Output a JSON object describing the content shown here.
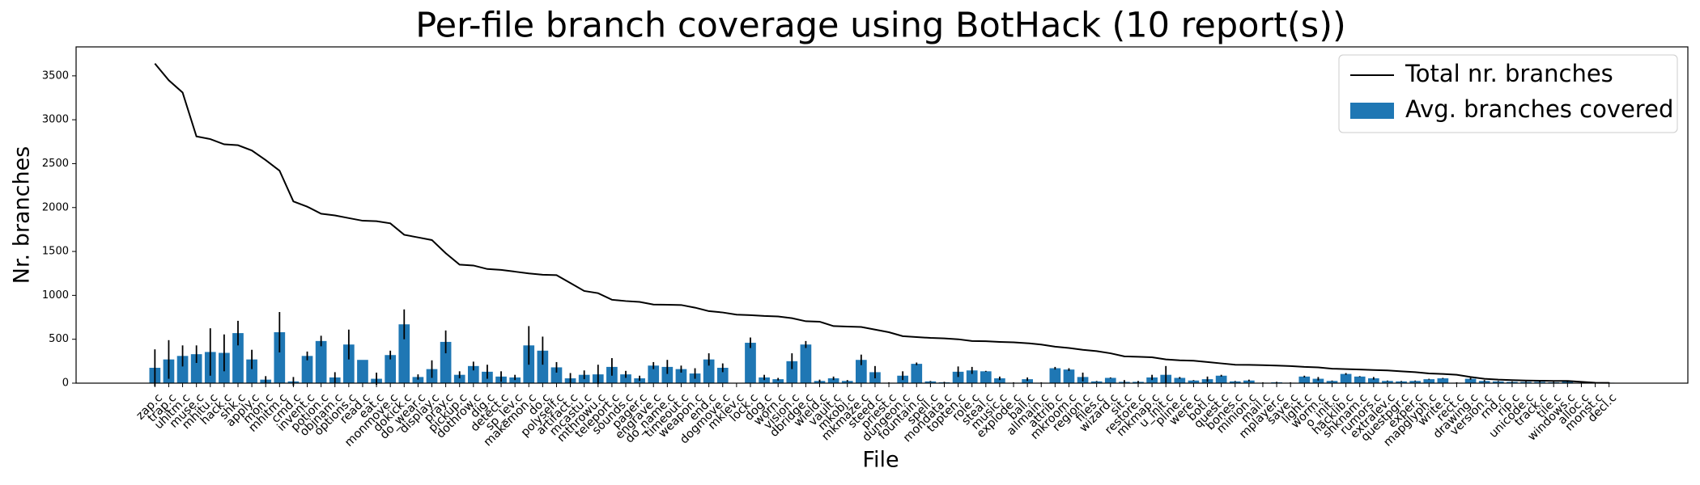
{
  "chart_data": {
    "type": "bar",
    "title": "Per-file branch coverage using BotHack (10 report(s))",
    "x_label": "File",
    "y_label": "Nr. branches",
    "categories": [
      "zap.c",
      "trap.c",
      "uhitm.c",
      "muse.c",
      "mhitu.c",
      "hack.c",
      "shk.c",
      "apply.c",
      "mon.c",
      "mhitm.c",
      "cmd.c",
      "invent.c",
      "potion.c",
      "objnam.c",
      "options.c",
      "read.c",
      "eat.c",
      "monmove.c",
      "dokick.c",
      "do_wear.c",
      "display.c",
      "pray.c",
      "pickup.c",
      "dothrow.c",
      "dig.c",
      "detect.c",
      "sp_lev.c",
      "makemon.c",
      "do.c",
      "polyself.c",
      "artifact.c",
      "mcastu.c",
      "mthrowu.c",
      "teleport.c",
      "sounds.c",
      "pager.c",
      "engrave.c",
      "do_name.c",
      "timeout.c",
      "weapon.c",
      "end.c",
      "dogmove.c",
      "mklev.c",
      "lock.c",
      "dog.c",
      "worn.c",
      "vision.c",
      "dbridge.c",
      "wield.c",
      "vault.c",
      "mkobj.c",
      "mkmaze.c",
      "steed.c",
      "priest.c",
      "dungeon.c",
      "fountain.c",
      "spell.c",
      "mondata.c",
      "topten.c",
      "role.c",
      "steal.c",
      "music.c",
      "explode.c",
      "ball.c",
      "allmain.c",
      "attrib.c",
      "mkroom.c",
      "region.c",
      "files.c",
      "wizard.c",
      "sit.c",
      "restore.c",
      "mkmap.c",
      "u_init.c",
      "pline.c",
      "were.c",
      "botl.c",
      "quest.c",
      "bones.c",
      "minion.c",
      "mail.c",
      "mplayer.c",
      "save.c",
      "light.c",
      "worm.c",
      "o_init.c",
      "hacklib.c",
      "shknam.c",
      "rumors.c",
      "extralev.c",
      "questpgr.c",
      "exper.c",
      "mapglyph.c",
      "write.c",
      "rect.c",
      "drawing.c",
      "version.c",
      "rnd.c",
      "rip.c",
      "unicode.c",
      "track.c",
      "tile.c",
      "windows.c",
      "alloc.c",
      "monst.c",
      "decl.c"
    ],
    "series": [
      {
        "name": "Total nr. branches",
        "type": "line",
        "color": "#000000",
        "values": [
          3640,
          3450,
          3310,
          2810,
          2780,
          2720,
          2710,
          2650,
          2540,
          2420,
          2070,
          2010,
          1930,
          1910,
          1880,
          1850,
          1845,
          1820,
          1690,
          1660,
          1630,
          1480,
          1350,
          1340,
          1300,
          1290,
          1270,
          1250,
          1235,
          1230,
          1140,
          1050,
          1025,
          950,
          935,
          925,
          895,
          893,
          890,
          860,
          820,
          805,
          780,
          775,
          765,
          760,
          740,
          705,
          700,
          650,
          645,
          640,
          610,
          580,
          535,
          525,
          515,
          510,
          500,
          480,
          478,
          470,
          465,
          455,
          440,
          415,
          400,
          380,
          365,
          340,
          305,
          300,
          295,
          270,
          260,
          255,
          240,
          225,
          210,
          208,
          205,
          200,
          195,
          185,
          180,
          165,
          160,
          155,
          150,
          145,
          135,
          125,
          110,
          105,
          95,
          70,
          50,
          40,
          35,
          30,
          28,
          25,
          25,
          15,
          5,
          3
        ]
      },
      {
        "name": "Avg. branches covered",
        "type": "bar",
        "color": "#1f77b4",
        "error_color": "#000000",
        "values": [
          175,
          270,
          310,
          330,
          355,
          345,
          570,
          270,
          40,
          580,
          20,
          310,
          480,
          65,
          440,
          265,
          50,
          320,
          670,
          70,
          160,
          470,
          95,
          195,
          130,
          75,
          65,
          430,
          370,
          180,
          55,
          95,
          100,
          185,
          100,
          55,
          200,
          185,
          160,
          110,
          270,
          175,
          0,
          460,
          65,
          45,
          250,
          440,
          25,
          55,
          25,
          265,
          125,
          5,
          85,
          220,
          20,
          10,
          130,
          145,
          135,
          55,
          5,
          45,
          5,
          170,
          155,
          70,
          20,
          60,
          15,
          15,
          65,
          95,
          60,
          30,
          45,
          85,
          20,
          30,
          5,
          10,
          5,
          75,
          50,
          25,
          105,
          75,
          55,
          25,
          20,
          25,
          45,
          55,
          5,
          50,
          25,
          20,
          15,
          15,
          15,
          10,
          20,
          5,
          5,
          5
        ],
        "errors": [
          210,
          220,
          120,
          100,
          270,
          210,
          140,
          110,
          40,
          230,
          50,
          50,
          60,
          60,
          170,
          0,
          70,
          50,
          170,
          30,
          100,
          130,
          40,
          50,
          80,
          60,
          30,
          220,
          160,
          60,
          60,
          50,
          110,
          100,
          40,
          30,
          40,
          80,
          40,
          60,
          70,
          50,
          0,
          60,
          30,
          15,
          90,
          40,
          15,
          20,
          10,
          60,
          70,
          5,
          50,
          15,
          5,
          5,
          60,
          40,
          5,
          20,
          5,
          20,
          5,
          15,
          15,
          50,
          5,
          5,
          20,
          10,
          30,
          100,
          10,
          5,
          30,
          10,
          5,
          10,
          5,
          5,
          5,
          10,
          20,
          5,
          10,
          5,
          15,
          5,
          5,
          5,
          5,
          5,
          5,
          10,
          10,
          5,
          5,
          5,
          5,
          5,
          10,
          5,
          5,
          5
        ]
      }
    ],
    "ylim": [
      0,
      3830
    ],
    "yticks": [
      0,
      500,
      1000,
      1500,
      2000,
      2500,
      3000,
      3500
    ],
    "legend": "upper right"
  }
}
